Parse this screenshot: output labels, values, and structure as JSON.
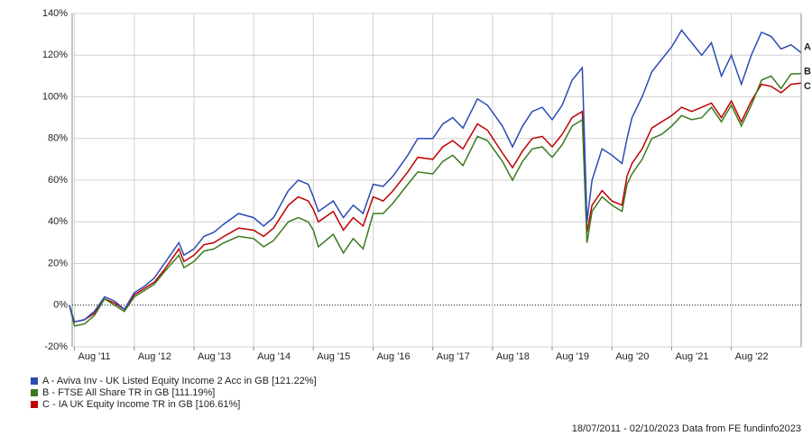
{
  "chart_data": {
    "type": "line",
    "footer": "18/07/2011 - 02/10/2023 Data from FE fundinfo2023",
    "xlim": [
      "2011-07-18",
      "2023-10-02"
    ],
    "xticks": [
      {
        "value": "2011-08-01",
        "label": "Aug '11"
      },
      {
        "value": "2012-08-01",
        "label": "Aug '12"
      },
      {
        "value": "2013-08-01",
        "label": "Aug '13"
      },
      {
        "value": "2014-08-01",
        "label": "Aug '14"
      },
      {
        "value": "2015-08-01",
        "label": "Aug '15"
      },
      {
        "value": "2016-08-01",
        "label": "Aug '16"
      },
      {
        "value": "2017-08-01",
        "label": "Aug '17"
      },
      {
        "value": "2018-08-01",
        "label": "Aug '18"
      },
      {
        "value": "2019-08-01",
        "label": "Aug '19"
      },
      {
        "value": "2020-08-01",
        "label": "Aug '20"
      },
      {
        "value": "2021-08-01",
        "label": "Aug '21"
      },
      {
        "value": "2022-08-01",
        "label": "Aug '22"
      }
    ],
    "ylim": [
      -20,
      140
    ],
    "yticks": [
      {
        "value": -20,
        "label": "-20%"
      },
      {
        "value": 0,
        "label": "0%"
      },
      {
        "value": 20,
        "label": "20%"
      },
      {
        "value": 40,
        "label": "40%"
      },
      {
        "value": 60,
        "label": "60%"
      },
      {
        "value": 80,
        "label": "80%"
      },
      {
        "value": 100,
        "label": "100%"
      },
      {
        "value": 120,
        "label": "120%"
      },
      {
        "value": 140,
        "label": "140%"
      }
    ],
    "grid": true,
    "x": [
      "2011-07",
      "2011-08",
      "2011-10",
      "2011-12",
      "2012-02",
      "2012-04",
      "2012-06",
      "2012-08",
      "2012-10",
      "2012-12",
      "2013-02",
      "2013-05",
      "2013-06",
      "2013-08",
      "2013-10",
      "2013-12",
      "2014-02",
      "2014-05",
      "2014-08",
      "2014-10",
      "2014-12",
      "2015-03",
      "2015-05",
      "2015-07",
      "2015-08",
      "2015-09",
      "2015-12",
      "2016-02",
      "2016-04",
      "2016-06",
      "2016-08",
      "2016-10",
      "2016-12",
      "2017-03",
      "2017-05",
      "2017-08",
      "2017-10",
      "2017-12",
      "2018-02",
      "2018-05",
      "2018-07",
      "2018-10",
      "2018-12",
      "2019-02",
      "2019-04",
      "2019-06",
      "2019-08",
      "2019-10",
      "2019-12",
      "2020-02",
      "2020-03",
      "2020-04",
      "2020-06",
      "2020-08",
      "2020-10",
      "2020-11",
      "2020-12",
      "2021-02",
      "2021-04",
      "2021-06",
      "2021-08",
      "2021-10",
      "2021-12",
      "2022-02",
      "2022-04",
      "2022-06",
      "2022-08",
      "2022-10",
      "2022-12",
      "2023-02",
      "2023-04",
      "2023-06",
      "2023-08",
      "2023-10"
    ],
    "series": [
      {
        "name": "A - Aviva Inv - UK Listed Equity Income 2 Acc in GB [121.22%]",
        "end_label": "A",
        "color": "#2b4bb3",
        "values": [
          0,
          -8,
          -7,
          -3,
          4,
          2,
          -2,
          6,
          9,
          13,
          20,
          30,
          24,
          27,
          33,
          35,
          39,
          44,
          42,
          38,
          42,
          55,
          60,
          58,
          52,
          45,
          50,
          42,
          48,
          44,
          58,
          57,
          62,
          72,
          80,
          80,
          87,
          90,
          85,
          99,
          96,
          86,
          76,
          86,
          93,
          95,
          89,
          96,
          108,
          114,
          40,
          60,
          75,
          72,
          68,
          80,
          90,
          100,
          112,
          118,
          124,
          132,
          126,
          120,
          126,
          110,
          120,
          106,
          120,
          131,
          129,
          123,
          125,
          121.22
        ]
      },
      {
        "name": "B - FTSE All Share TR in GB [111.19%]",
        "end_label": "B",
        "color": "#3b7a1e",
        "values": [
          0,
          -10,
          -9,
          -5,
          3,
          0,
          -3,
          4,
          7,
          10,
          16,
          24,
          18,
          21,
          26,
          27,
          30,
          33,
          32,
          28,
          31,
          40,
          42,
          40,
          36,
          28,
          34,
          25,
          32,
          27,
          44,
          44,
          49,
          58,
          64,
          63,
          69,
          72,
          67,
          81,
          79,
          69,
          60,
          69,
          75,
          76,
          71,
          77,
          86,
          89,
          30,
          45,
          52,
          48,
          45,
          58,
          63,
          70,
          80,
          82,
          86,
          91,
          89,
          90,
          95,
          88,
          96,
          86,
          96,
          108,
          110,
          104,
          111,
          111.19
        ]
      },
      {
        "name": "C - IA UK Equity Income TR in GB [106.61%]",
        "end_label": "C",
        "color": "#c00000",
        "values": [
          0,
          -8,
          -7,
          -4,
          3,
          1,
          -2,
          5,
          8,
          11,
          17,
          27,
          21,
          24,
          29,
          30,
          33,
          37,
          36,
          33,
          37,
          48,
          52,
          50,
          46,
          40,
          45,
          36,
          42,
          38,
          52,
          50,
          55,
          64,
          71,
          70,
          76,
          79,
          75,
          87,
          84,
          73,
          66,
          74,
          80,
          81,
          76,
          82,
          90,
          93,
          35,
          48,
          55,
          50,
          48,
          62,
          68,
          75,
          85,
          88,
          91,
          95,
          93,
          95,
          97,
          90,
          98,
          88,
          98,
          106,
          105,
          102,
          106,
          106.61
        ]
      }
    ]
  }
}
